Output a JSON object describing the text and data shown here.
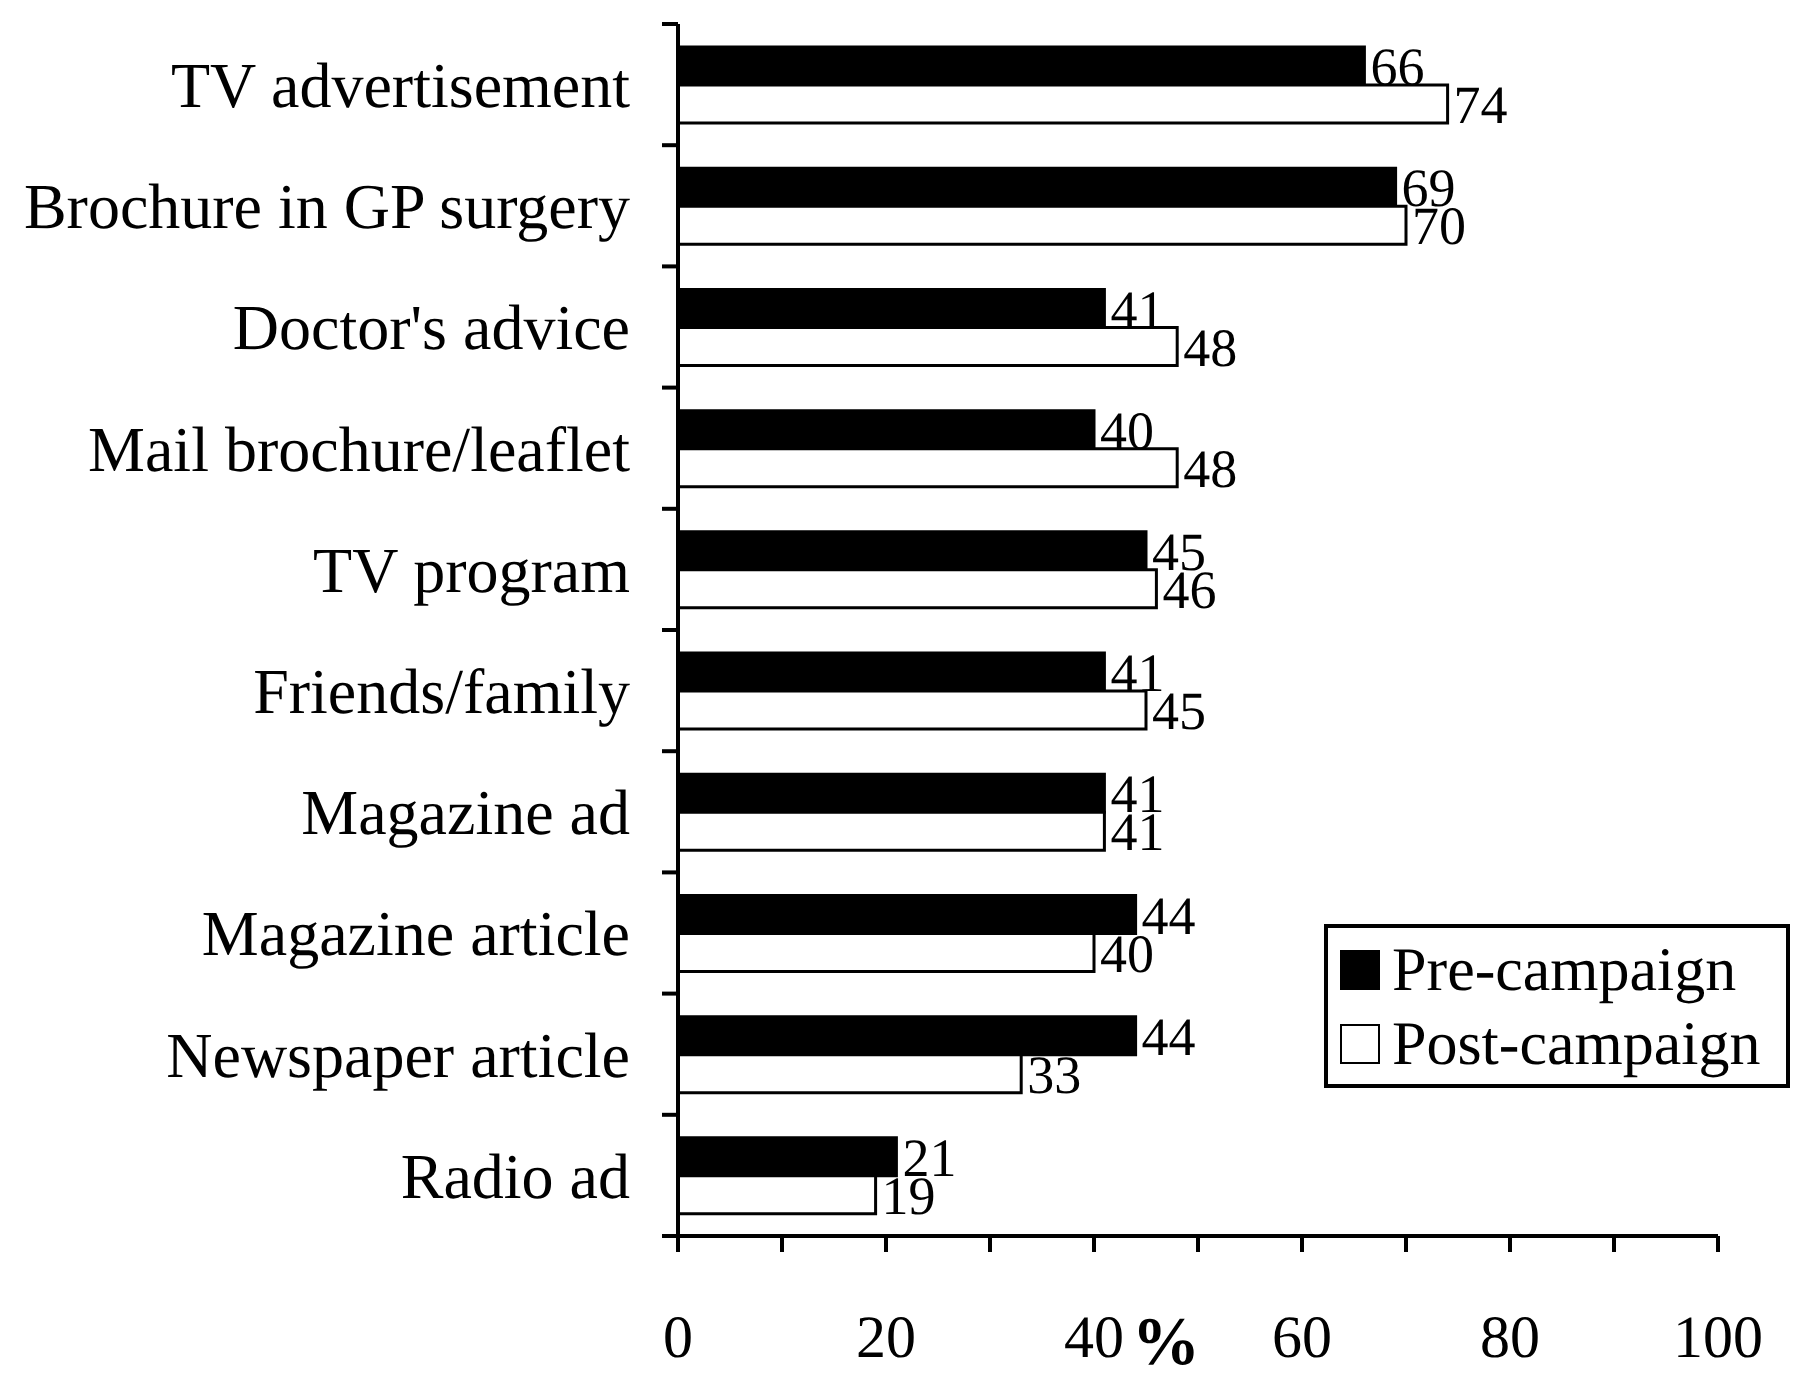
{
  "chart_data": {
    "type": "bar",
    "orientation": "horizontal",
    "categories": [
      "TV advertisement",
      "Brochure in GP surgery",
      "Doctor's advice",
      "Mail brochure/leaflet",
      "TV program",
      "Friends/family",
      "Magazine ad",
      "Magazine article",
      "Newspaper article",
      "Radio ad"
    ],
    "series": [
      {
        "name": "Pre-campaign",
        "color": "#000000",
        "values": [
          66,
          69,
          41,
          40,
          45,
          41,
          41,
          44,
          44,
          21
        ]
      },
      {
        "name": "Post-campaign",
        "color": "#ffffff",
        "values": [
          74,
          70,
          48,
          48,
          46,
          45,
          41,
          40,
          33,
          19
        ]
      }
    ],
    "xlim": [
      0,
      100
    ],
    "xticks": [
      0,
      {
        "value": 10,
        "label": null
      },
      20,
      {
        "value": 30,
        "label": null
      },
      40,
      {
        "value": 50,
        "label": null
      },
      60,
      {
        "value": 70,
        "label": null
      },
      80,
      {
        "value": 90,
        "label": null
      },
      100
    ],
    "xlabel": "%",
    "legend": "bottom right",
    "data_labels": true
  }
}
